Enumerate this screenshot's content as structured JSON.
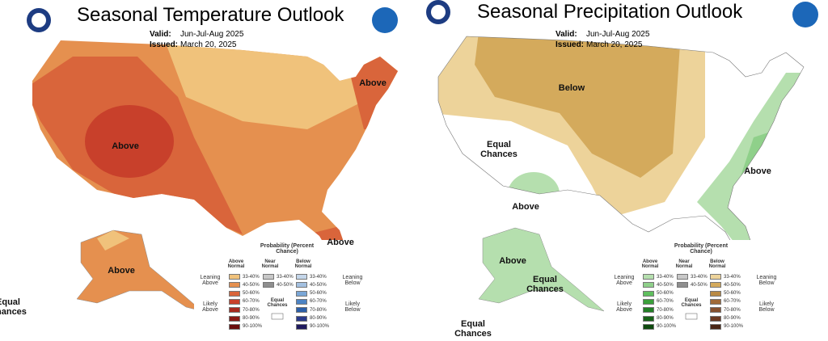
{
  "panels": [
    {
      "title": "Seasonal Temperature Outlook",
      "valid_label": "Valid:",
      "valid": "Jun-Jul-Aug 2025",
      "issued_label": "Issued:",
      "issued": "March 20, 2025",
      "region_labels": [
        "Above",
        "Above",
        "Above",
        "Above",
        "Equal Chances"
      ],
      "legend": {
        "title": "Probability (Percent Chance)",
        "columns": [
          {
            "head": "Above Normal",
            "items": [
              {
                "label": "33-40%",
                "color": "#f0c27b"
              },
              {
                "label": "40-50%",
                "color": "#e5904f"
              },
              {
                "label": "50-60%",
                "color": "#d9653b"
              },
              {
                "label": "60-70%",
                "color": "#c8402b"
              },
              {
                "label": "70-80%",
                "color": "#a82a1f"
              },
              {
                "label": "80-90%",
                "color": "#8a1a16"
              },
              {
                "label": "90-100%",
                "color": "#6a0e0e"
              }
            ]
          },
          {
            "head": "Near Normal",
            "items": [
              {
                "label": "33-40%",
                "color": "#c8c8c8"
              },
              {
                "label": "40-50%",
                "color": "#8f8f8f"
              }
            ]
          },
          {
            "head": "Below Normal",
            "items": [
              {
                "label": "33-40%",
                "color": "#c4d6ea"
              },
              {
                "label": "40-50%",
                "color": "#a3c0e0"
              },
              {
                "label": "50-60%",
                "color": "#7aa6d6"
              },
              {
                "label": "60-70%",
                "color": "#4d84c4"
              },
              {
                "label": "70-80%",
                "color": "#2c5fa8"
              },
              {
                "label": "80-90%",
                "color": "#2a3a8a"
              },
              {
                "label": "90-100%",
                "color": "#1f1a5e"
              }
            ]
          }
        ],
        "leaning_above": "Leaning Above",
        "likely_above": "Likely Above",
        "leaning_below": "Leaning Below",
        "likely_below": "Likely Below",
        "equal_chances": "Equal Chances"
      }
    },
    {
      "title": "Seasonal Precipitation Outlook",
      "valid_label": "Valid:",
      "valid": "Jun-Jul-Aug 2025",
      "issued_label": "Issued:",
      "issued": "March 20, 2025",
      "region_labels": [
        "Below",
        "Equal Chances",
        "Above",
        "Above",
        "Above",
        "Equal Chances",
        "Equal Chances"
      ],
      "legend": {
        "title": "Probability (Percent Chance)",
        "columns": [
          {
            "head": "Above Normal",
            "items": [
              {
                "label": "33-40%",
                "color": "#b5dfae"
              },
              {
                "label": "40-50%",
                "color": "#8fd08a"
              },
              {
                "label": "50-60%",
                "color": "#5fbf5e"
              },
              {
                "label": "60-70%",
                "color": "#3ba03b"
              },
              {
                "label": "70-80%",
                "color": "#237f26"
              },
              {
                "label": "80-90%",
                "color": "#186318"
              },
              {
                "label": "90-100%",
                "color": "#0f4a0f"
              }
            ]
          },
          {
            "head": "Near Normal",
            "items": [
              {
                "label": "33-40%",
                "color": "#c8c8c8"
              },
              {
                "label": "40-50%",
                "color": "#8f8f8f"
              }
            ]
          },
          {
            "head": "Below Normal",
            "items": [
              {
                "label": "33-40%",
                "color": "#edd39a"
              },
              {
                "label": "40-50%",
                "color": "#d4aa5c"
              },
              {
                "label": "50-60%",
                "color": "#b98a45"
              },
              {
                "label": "60-70%",
                "color": "#a06a38"
              },
              {
                "label": "70-80%",
                "color": "#86502e"
              },
              {
                "label": "80-90%",
                "color": "#6b3a22"
              },
              {
                "label": "90-100%",
                "color": "#4a2616"
              }
            ]
          }
        ],
        "leaning_above": "Leaning Above",
        "likely_above": "Likely Above",
        "leaning_below": "Leaning Below",
        "likely_below": "Likely Below",
        "equal_chances": "Equal Chances"
      }
    }
  ]
}
